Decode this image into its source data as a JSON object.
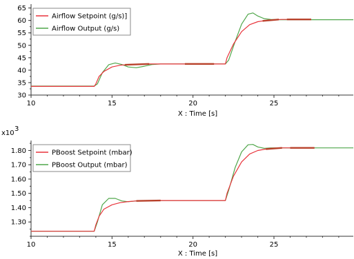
{
  "colors": {
    "setpoint": "#e8323a",
    "output": "#4fa64a",
    "axis": "#333333",
    "legend_border": "#8a8a8a",
    "background": "#ffffff"
  },
  "chart_data": [
    {
      "type": "line",
      "id": "airflow",
      "title": "",
      "xlabel": "X : Time [s]",
      "ylabel": "",
      "xlim": [
        10,
        29.9
      ],
      "ylim": [
        30,
        66
      ],
      "xticks": [
        10,
        15,
        20,
        25
      ],
      "xtick_labels": [
        "10",
        "15",
        "20",
        "25"
      ],
      "yticks": [
        30,
        35,
        40,
        45,
        50,
        55,
        60,
        65
      ],
      "ytick_labels": [
        "30",
        "35",
        "40",
        "45",
        "50",
        "55",
        "60",
        "65"
      ],
      "y_exponent_label": "",
      "grid": false,
      "legend_position": "top-left",
      "series": [
        {
          "name": "Airflow Setpoint (g/s)]",
          "color_key": "setpoint",
          "x": [
            10,
            13.9,
            14.0,
            14.2,
            14.5,
            15.0,
            15.5,
            16.0,
            16.5,
            17.0,
            22.0,
            22.1,
            22.5,
            23.0,
            23.5,
            24.0,
            24.5,
            25.0,
            25.5,
            27.3
          ],
          "y": [
            33.5,
            33.5,
            34.5,
            37.5,
            39.5,
            41.3,
            42.0,
            42.3,
            42.4,
            42.5,
            42.5,
            45.0,
            50.5,
            55.5,
            58.3,
            59.5,
            60.0,
            60.3,
            60.4,
            60.4
          ],
          "thick_segments": [
            [
              15.8,
              17.3
            ],
            [
              19.5,
              21.3
            ],
            [
              24.3,
              25.3
            ],
            [
              25.8,
              27.3
            ]
          ]
        },
        {
          "name": "Airflow Output (g/s)",
          "color_key": "output",
          "x": [
            10,
            13.9,
            14.1,
            14.4,
            14.8,
            15.2,
            15.6,
            16.0,
            16.5,
            17.0,
            17.5,
            18.0,
            22.0,
            22.2,
            22.6,
            23.0,
            23.4,
            23.7,
            24.0,
            24.4,
            24.8,
            25.3,
            29.9
          ],
          "y": [
            33.6,
            33.6,
            34.5,
            39.0,
            42.2,
            42.9,
            42.3,
            41.3,
            41.0,
            41.6,
            42.3,
            42.5,
            42.5,
            44.0,
            51.5,
            58.5,
            62.5,
            63.0,
            61.8,
            60.7,
            60.4,
            60.3,
            60.3
          ]
        }
      ]
    },
    {
      "type": "line",
      "id": "pboost",
      "title": "",
      "xlabel": "X : Time [s]",
      "ylabel": "",
      "xlim": [
        10,
        29.9
      ],
      "ylim": [
        1.2,
        1.86
      ],
      "xticks": [
        10,
        15,
        20,
        25
      ],
      "xtick_labels": [
        "10",
        "15",
        "20",
        "25"
      ],
      "yticks": [
        1.3,
        1.4,
        1.5,
        1.6,
        1.7,
        1.8
      ],
      "ytick_labels": [
        "1.30",
        "1.40",
        "1.50",
        "1.60",
        "1.70",
        "1.80"
      ],
      "y_exponent_label": "x10",
      "y_exponent_power": "3",
      "grid": false,
      "legend_position": "top-left",
      "series": [
        {
          "name": "PBoost Setpoint (mbar)",
          "color_key": "setpoint",
          "x": [
            10,
            13.9,
            14.0,
            14.2,
            14.5,
            15.0,
            15.5,
            16.0,
            16.5,
            17.0,
            22.0,
            22.1,
            22.5,
            23.0,
            23.5,
            24.0,
            24.5,
            25.0,
            25.5,
            27.5
          ],
          "y": [
            1.235,
            1.235,
            1.28,
            1.34,
            1.39,
            1.42,
            1.435,
            1.443,
            1.447,
            1.45,
            1.45,
            1.5,
            1.62,
            1.72,
            1.775,
            1.8,
            1.81,
            1.815,
            1.818,
            1.818
          ],
          "thick_segments": [
            [
              16.5,
              18.0
            ],
            [
              24.5,
              25.5
            ],
            [
              26.0,
              27.5
            ]
          ]
        },
        {
          "name": "PBoost Output (mbar)",
          "color_key": "output",
          "x": [
            10,
            13.9,
            14.1,
            14.4,
            14.8,
            15.2,
            15.6,
            16.0,
            16.6,
            17.2,
            22.0,
            22.2,
            22.6,
            23.0,
            23.4,
            23.7,
            24.0,
            24.4,
            24.8,
            25.3,
            29.9
          ],
          "y": [
            1.235,
            1.235,
            1.3,
            1.42,
            1.465,
            1.465,
            1.447,
            1.442,
            1.448,
            1.45,
            1.45,
            1.52,
            1.68,
            1.79,
            1.84,
            1.842,
            1.825,
            1.815,
            1.818,
            1.818,
            1.818
          ]
        }
      ]
    }
  ]
}
